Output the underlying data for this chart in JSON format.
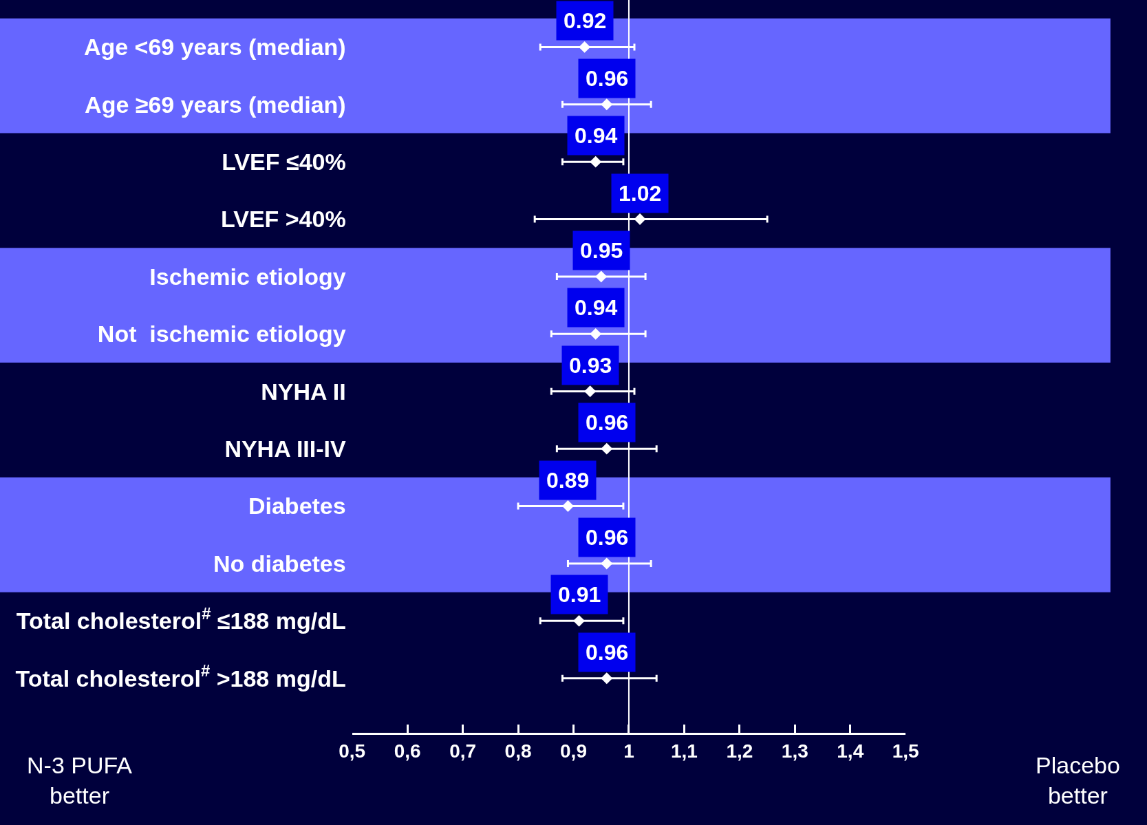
{
  "chart_data": {
    "type": "scatter",
    "orientation": "horizontal",
    "categories": [
      "Age <69 years (median)",
      "Age ≥69 years (median)",
      "LVEF ≤40%",
      "LVEF >40%",
      "Ischemic etiology",
      "Not  ischemic etiology",
      "NYHA II",
      "NYHA III-IV",
      "Diabetes",
      "No diabetes",
      "Total cholesterol$^{#}$ ≤188 mg/dL",
      "Total cholesterol$^{#}$ >188 mg/dL"
    ],
    "values": [
      0.92,
      0.96,
      0.94,
      1.02,
      0.95,
      0.94,
      0.93,
      0.96,
      0.89,
      0.96,
      0.91,
      0.96
    ],
    "errors": [
      [
        0.84,
        1.01
      ],
      [
        0.88,
        1.04
      ],
      [
        0.88,
        0.99
      ],
      [
        0.83,
        1.25
      ],
      [
        0.87,
        1.03
      ],
      [
        0.86,
        1.03
      ],
      [
        0.86,
        1.01
      ],
      [
        0.87,
        1.05
      ],
      [
        0.8,
        0.99
      ],
      [
        0.89,
        1.04
      ],
      [
        0.84,
        0.99
      ],
      [
        0.88,
        1.05
      ]
    ],
    "color": "#ffffff",
    "marker": "diamond",
    "data_labels": true,
    "xlim": [
      0.5,
      1.5
    ],
    "xticks": [
      {
        "value": 0.5,
        "label": "0,5"
      },
      {
        "value": 0.6,
        "label": "0,6"
      },
      {
        "value": 0.7,
        "label": "0,7"
      },
      {
        "value": 0.8,
        "label": "0,8"
      },
      {
        "value": 0.9,
        "label": "0,9"
      },
      1,
      {
        "value": 1.1,
        "label": "1,1"
      },
      {
        "value": 1.2,
        "label": "1,2"
      },
      {
        "value": 1.3,
        "label": "1,3"
      },
      {
        "value": 1.4,
        "label": "1,4"
      },
      {
        "value": 1.5,
        "label": "1,5"
      }
    ],
    "ref_lines": [
      {
        "axis": "x",
        "value": 1,
        "color": "#ffffff"
      }
    ],
    "bands": [
      {
        "axis": "y",
        "from": "Age <69 years (median)",
        "to": "Age ≥69 years (median)",
        "color": "#6666ff"
      },
      {
        "axis": "y",
        "from": "Ischemic etiology",
        "to": "Not  ischemic etiology",
        "color": "#6666ff"
      },
      {
        "axis": "y",
        "from": "Diabetes",
        "to": "No diabetes",
        "color": "#6666ff"
      }
    ],
    "annotations": [
      "N-3 PUFA\nbetter",
      "Placebo\nbetter"
    ],
    "grid": false,
    "legend": false
  }
}
